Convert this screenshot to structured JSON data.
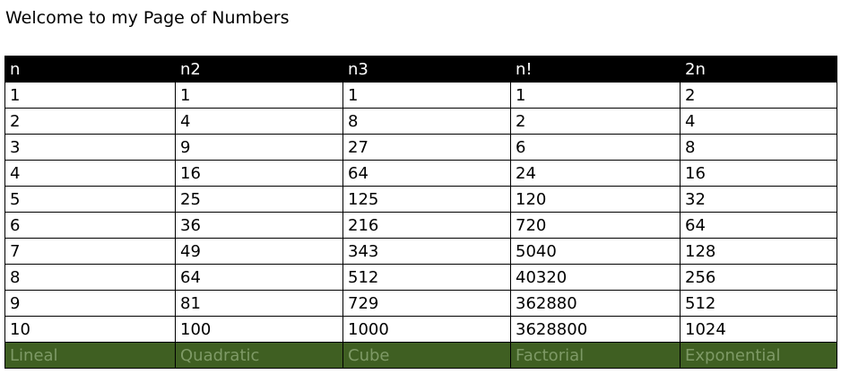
{
  "page": {
    "heading": "Welcome to my Page of Numbers"
  },
  "table": {
    "headers": [
      "n",
      "n2",
      "n3",
      "n!",
      "2n"
    ],
    "rows": [
      [
        "1",
        "1",
        "1",
        "1",
        "2"
      ],
      [
        "2",
        "4",
        "8",
        "2",
        "4"
      ],
      [
        "3",
        "9",
        "27",
        "6",
        "8"
      ],
      [
        "4",
        "16",
        "64",
        "24",
        "16"
      ],
      [
        "5",
        "25",
        "125",
        "120",
        "32"
      ],
      [
        "6",
        "36",
        "216",
        "720",
        "64"
      ],
      [
        "7",
        "49",
        "343",
        "5040",
        "128"
      ],
      [
        "8",
        "64",
        "512",
        "40320",
        "256"
      ],
      [
        "9",
        "81",
        "729",
        "362880",
        "512"
      ],
      [
        "10",
        "100",
        "1000",
        "3628800",
        "1024"
      ]
    ],
    "footer": [
      "Lineal",
      "Quadratic",
      "Cube",
      "Factorial",
      "Exponential"
    ]
  },
  "colors": {
    "header_background": "#000000",
    "header_text": "#ffffff",
    "footer_background": "#3f5f22",
    "footer_text": "#7e9a66"
  }
}
